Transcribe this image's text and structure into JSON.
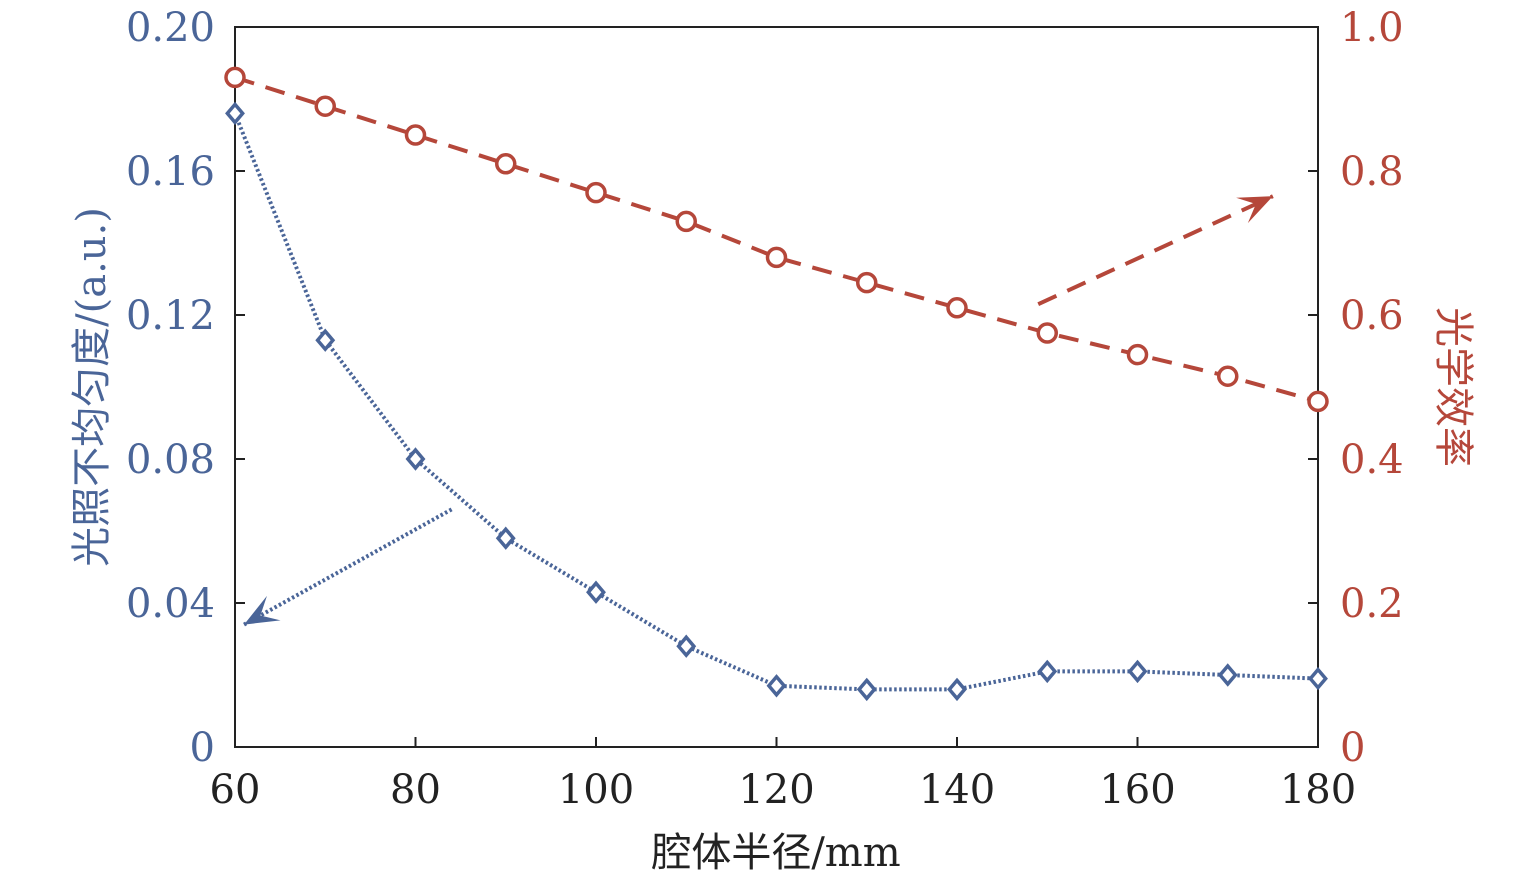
{
  "chart_data": {
    "type": "line",
    "xlabel": "腔体半径/mm",
    "ylabel_left": "光照不均匀度/(a.u.)",
    "ylabel_right": "光学效率",
    "x": [
      60,
      70,
      80,
      90,
      100,
      110,
      120,
      130,
      140,
      150,
      160,
      170,
      180
    ],
    "xlim": [
      60,
      180
    ],
    "x_ticks": [
      "60",
      "80",
      "100",
      "120",
      "140",
      "160",
      "180"
    ],
    "ylim_left": [
      0,
      0.2
    ],
    "ylim_right": [
      0,
      1.0
    ],
    "y_ticks_left": [
      "0",
      "0.04",
      "0.08",
      "0.12",
      "0.16",
      "0.20"
    ],
    "y_ticks_right": [
      "0",
      "0.2",
      "0.4",
      "0.6",
      "0.8",
      "1.0"
    ],
    "grid": false,
    "series": [
      {
        "axis": "left",
        "marker": "diamond",
        "line_style": "dotted",
        "color": "#4A6598",
        "values": [
          0.176,
          0.113,
          0.08,
          0.058,
          0.043,
          0.028,
          0.017,
          0.016,
          0.016,
          0.021,
          0.021,
          0.02,
          0.019
        ]
      },
      {
        "axis": "right",
        "marker": "circle",
        "line_style": "dashed",
        "color": "#B5473A",
        "values": [
          0.93,
          0.89,
          0.85,
          0.81,
          0.77,
          0.73,
          0.68,
          0.645,
          0.61,
          0.575,
          0.545,
          0.515,
          0.48
        ]
      }
    ],
    "annotations": [
      {
        "type": "arrow",
        "points_to": "left-axis",
        "color": "#4A6598",
        "from": {
          "x": 84,
          "y_left": 0.066
        },
        "to": {
          "x": 61,
          "y_left": 0.034
        }
      },
      {
        "type": "arrow",
        "points_to": "right-axis",
        "color": "#B5473A",
        "from": {
          "x": 149,
          "y_right": 0.615
        },
        "to": {
          "x": 175,
          "y_right": 0.765
        }
      }
    ]
  }
}
